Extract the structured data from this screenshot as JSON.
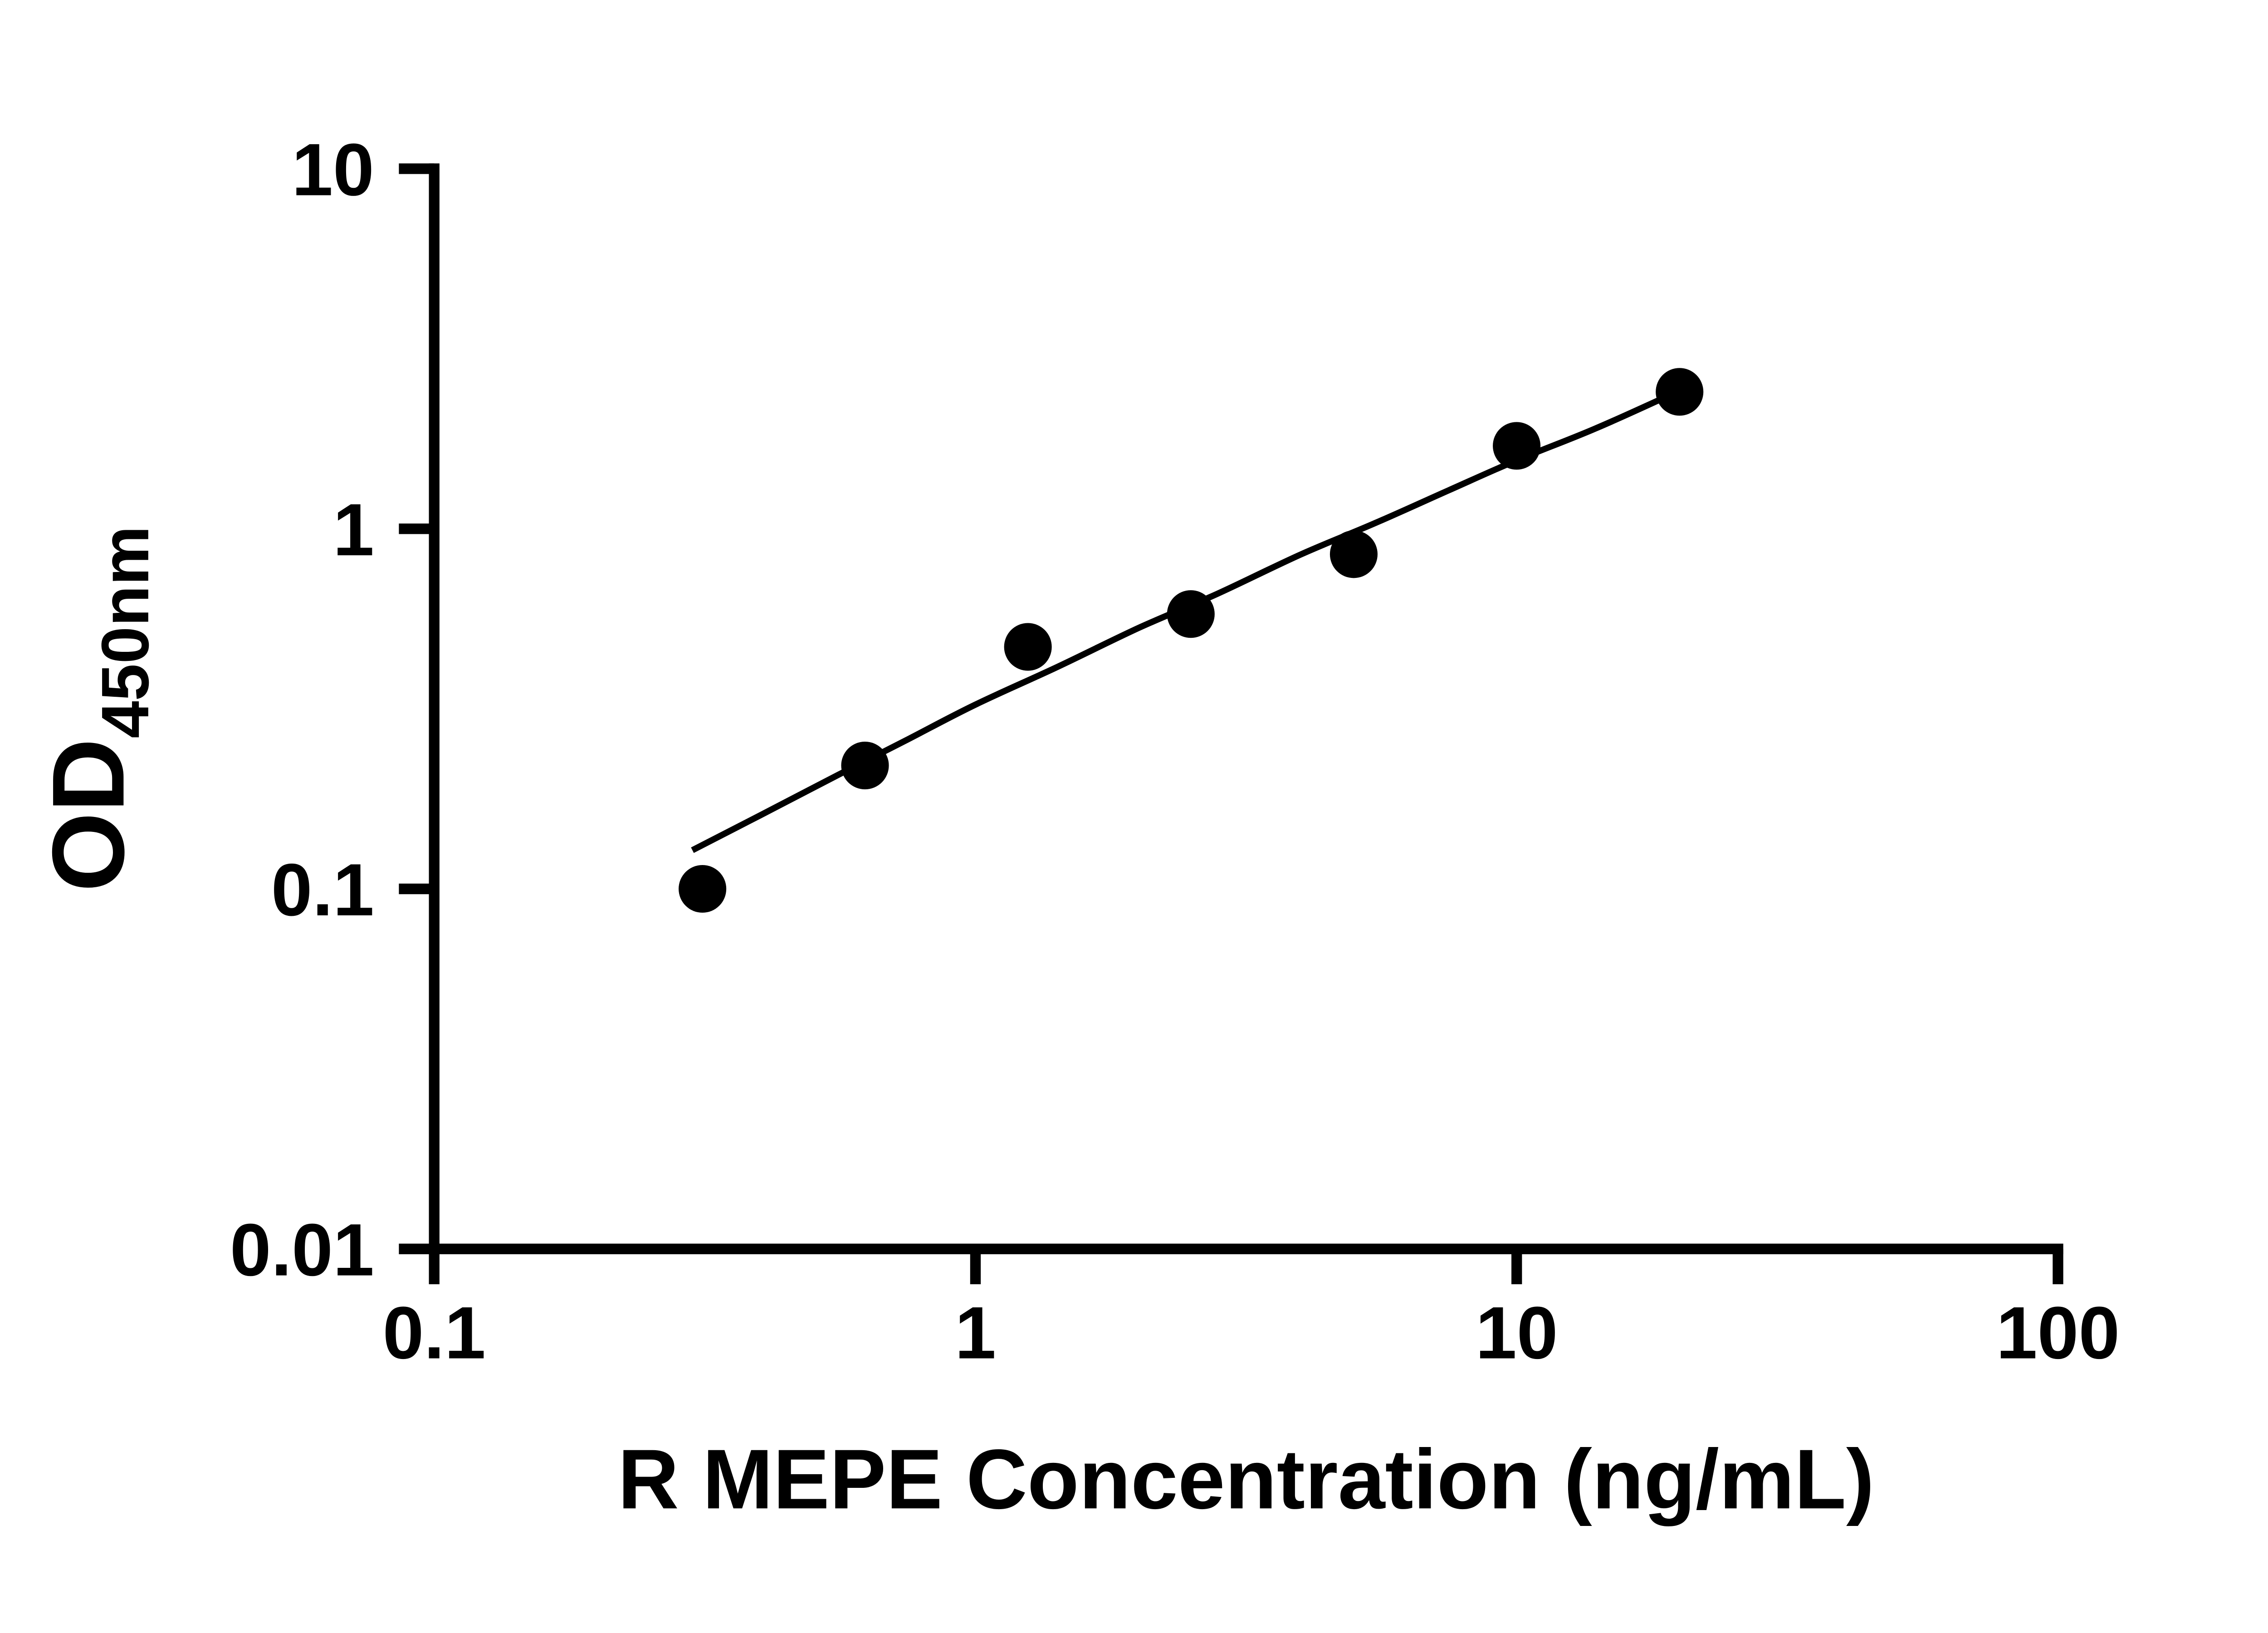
{
  "chart_data": {
    "type": "scatter",
    "title": "",
    "xlabel": "R MEPE Concentration (ng/mL)",
    "ylabel": {
      "main": "OD",
      "sub": "450nm"
    },
    "x_scale": "log",
    "y_scale": "log",
    "xlim": [
      0.1,
      100
    ],
    "ylim": [
      0.01,
      10
    ],
    "grid": false,
    "legend": false,
    "x_ticks": [
      {
        "value": 0.1,
        "label": "0.1"
      },
      {
        "value": 1,
        "label": "1"
      },
      {
        "value": 10,
        "label": "10"
      },
      {
        "value": 100,
        "label": "100"
      }
    ],
    "y_ticks": [
      {
        "value": 0.01,
        "label": "0.01"
      },
      {
        "value": 0.1,
        "label": "0.1"
      },
      {
        "value": 1,
        "label": "1"
      },
      {
        "value": 10,
        "label": "10"
      }
    ],
    "points": [
      {
        "x": 0.313,
        "y": 0.1
      },
      {
        "x": 0.625,
        "y": 0.22
      },
      {
        "x": 1.25,
        "y": 0.47
      },
      {
        "x": 2.5,
        "y": 0.58
      },
      {
        "x": 5,
        "y": 0.85
      },
      {
        "x": 10,
        "y": 1.7
      },
      {
        "x": 20,
        "y": 2.4
      }
    ],
    "fit_curve": [
      {
        "x": 0.3,
        "y": 0.128
      },
      {
        "x": 0.4,
        "y": 0.16
      },
      {
        "x": 0.55,
        "y": 0.205
      },
      {
        "x": 0.75,
        "y": 0.26
      },
      {
        "x": 1.0,
        "y": 0.325
      },
      {
        "x": 1.4,
        "y": 0.41
      },
      {
        "x": 2.0,
        "y": 0.53
      },
      {
        "x": 2.8,
        "y": 0.66
      },
      {
        "x": 4.0,
        "y": 0.85
      },
      {
        "x": 5.5,
        "y": 1.04
      },
      {
        "x": 7.5,
        "y": 1.28
      },
      {
        "x": 10,
        "y": 1.55
      },
      {
        "x": 14,
        "y": 1.9
      },
      {
        "x": 20,
        "y": 2.42
      }
    ],
    "colors": {
      "marker": "#000000",
      "line": "#000000",
      "axis": "#000000",
      "background": "#ffffff"
    }
  }
}
